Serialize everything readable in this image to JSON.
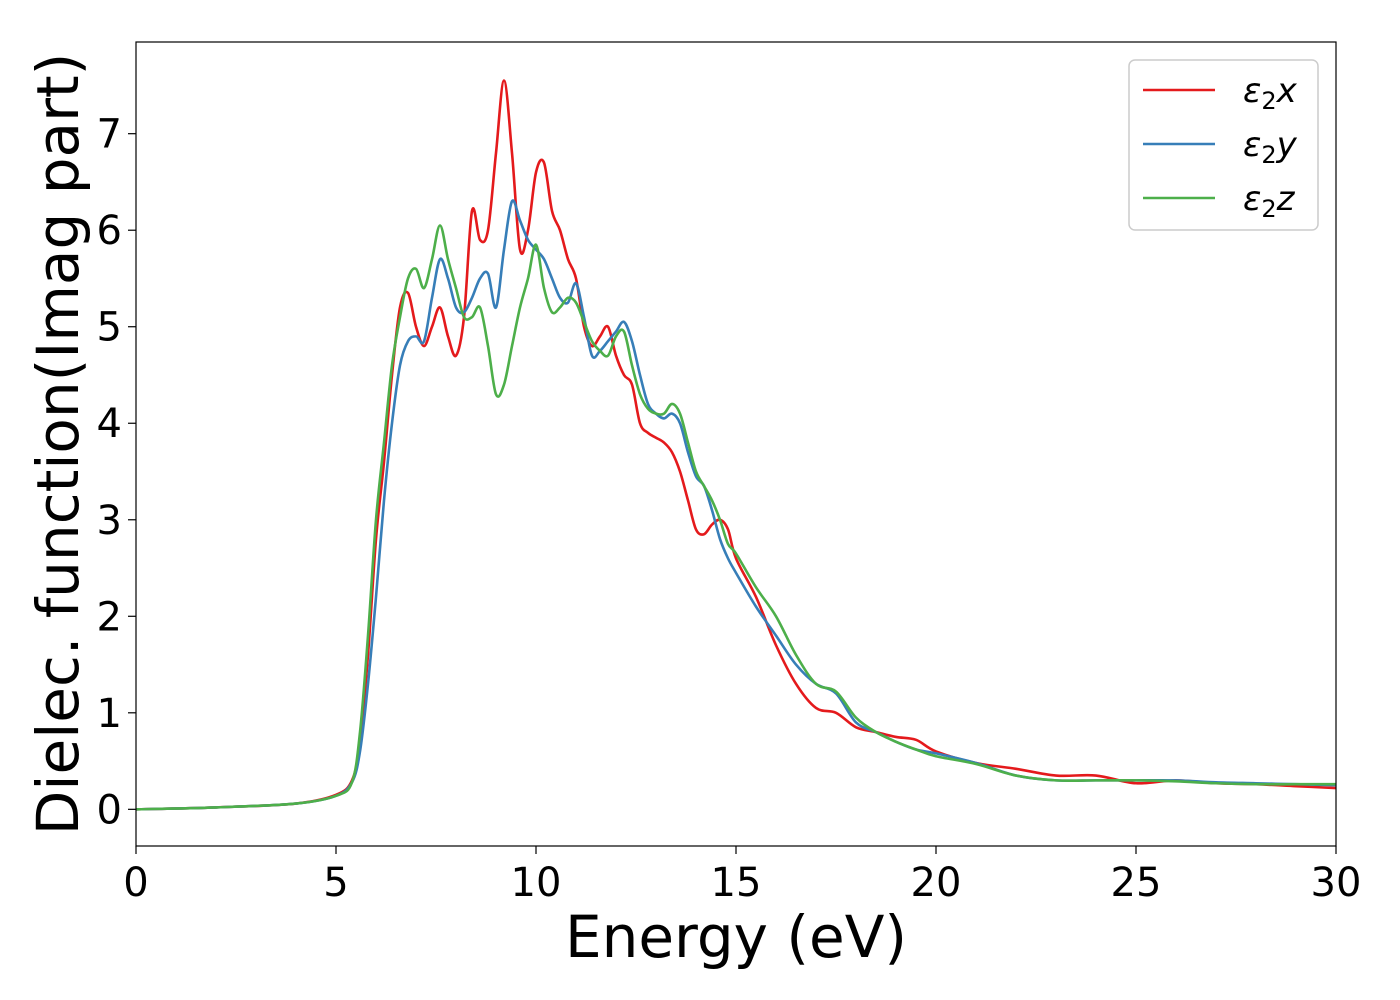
{
  "chart_data": {
    "type": "line",
    "title": "",
    "xlabel": "Energy (eV)",
    "ylabel": "Dielec. function(Imag part)",
    "xlim": [
      0,
      30
    ],
    "ylim": [
      -0.38,
      7.95
    ],
    "xticks": [
      0,
      5,
      10,
      15,
      20,
      25,
      30
    ],
    "xtick_labels": [
      "0",
      "5",
      "10",
      "15",
      "20",
      "25",
      "30"
    ],
    "yticks": [
      0,
      1,
      2,
      3,
      4,
      5,
      6,
      7
    ],
    "ytick_labels": [
      "0",
      "1",
      "2",
      "3",
      "4",
      "5",
      "6",
      "7"
    ],
    "grid": false,
    "legend_position": "top-right",
    "series": [
      {
        "name": "ε2x",
        "label_main": "ε",
        "label_sub": "2",
        "label_tail": "x",
        "color": "#e41a1c",
        "x": [
          0,
          2,
          4,
          5,
          5.4,
          5.6,
          5.8,
          6.0,
          6.2,
          6.4,
          6.6,
          6.8,
          7.0,
          7.2,
          7.4,
          7.6,
          7.8,
          8.0,
          8.2,
          8.4,
          8.6,
          8.8,
          9.0,
          9.2,
          9.4,
          9.6,
          9.8,
          10.0,
          10.2,
          10.4,
          10.6,
          10.8,
          11.0,
          11.2,
          11.4,
          11.6,
          11.8,
          12.0,
          12.2,
          12.4,
          12.6,
          12.8,
          13.0,
          13.2,
          13.4,
          13.6,
          13.8,
          14.0,
          14.2,
          14.4,
          14.6,
          14.8,
          15.0,
          15.5,
          16.0,
          16.5,
          17.0,
          17.5,
          18.0,
          18.5,
          19.0,
          19.5,
          20.0,
          21.0,
          22.0,
          23.0,
          24.0,
          25.0,
          26.0,
          27.0,
          28.0,
          29.0,
          30.0
        ],
        "y": [
          0.0,
          0.02,
          0.06,
          0.15,
          0.3,
          0.7,
          1.6,
          2.8,
          3.6,
          4.5,
          5.2,
          5.35,
          5.0,
          4.8,
          5.0,
          5.2,
          4.9,
          4.7,
          5.1,
          6.2,
          5.9,
          6.0,
          6.8,
          7.55,
          6.8,
          5.8,
          6.0,
          6.6,
          6.7,
          6.2,
          6.0,
          5.7,
          5.5,
          5.0,
          4.8,
          4.9,
          5.0,
          4.7,
          4.5,
          4.4,
          4.0,
          3.9,
          3.85,
          3.8,
          3.7,
          3.5,
          3.2,
          2.9,
          2.85,
          2.95,
          3.0,
          2.9,
          2.6,
          2.2,
          1.7,
          1.3,
          1.05,
          1.0,
          0.85,
          0.8,
          0.75,
          0.72,
          0.6,
          0.48,
          0.42,
          0.35,
          0.35,
          0.27,
          0.3,
          0.27,
          0.26,
          0.24,
          0.22
        ]
      },
      {
        "name": "ε2y",
        "label_main": "ε",
        "label_sub": "2",
        "label_tail": "y",
        "color": "#377eb8",
        "x": [
          0,
          2,
          4,
          5,
          5.4,
          5.6,
          5.8,
          6.0,
          6.2,
          6.4,
          6.6,
          6.8,
          7.0,
          7.2,
          7.4,
          7.6,
          7.8,
          8.0,
          8.2,
          8.4,
          8.6,
          8.8,
          9.0,
          9.2,
          9.4,
          9.6,
          9.8,
          10.0,
          10.2,
          10.4,
          10.6,
          10.8,
          11.0,
          11.2,
          11.4,
          11.6,
          11.8,
          12.0,
          12.2,
          12.4,
          12.6,
          12.8,
          13.0,
          13.2,
          13.4,
          13.6,
          13.8,
          14.0,
          14.2,
          14.4,
          14.6,
          14.8,
          15.0,
          15.5,
          16.0,
          16.5,
          17.0,
          17.5,
          18.0,
          18.5,
          19.0,
          19.5,
          20.0,
          21.0,
          22.0,
          23.0,
          24.0,
          25.0,
          26.0,
          27.0,
          28.0,
          29.0,
          30.0
        ],
        "y": [
          0.0,
          0.02,
          0.06,
          0.14,
          0.28,
          0.6,
          1.3,
          2.2,
          3.2,
          4.0,
          4.6,
          4.85,
          4.9,
          4.85,
          5.3,
          5.7,
          5.5,
          5.2,
          5.15,
          5.3,
          5.5,
          5.55,
          5.2,
          5.8,
          6.3,
          6.1,
          5.9,
          5.8,
          5.7,
          5.5,
          5.3,
          5.25,
          5.45,
          5.1,
          4.7,
          4.75,
          4.85,
          4.95,
          5.05,
          4.85,
          4.5,
          4.2,
          4.1,
          4.05,
          4.1,
          4.0,
          3.7,
          3.45,
          3.35,
          3.1,
          2.8,
          2.6,
          2.45,
          2.1,
          1.8,
          1.5,
          1.3,
          1.2,
          0.9,
          0.8,
          0.7,
          0.62,
          0.58,
          0.48,
          0.35,
          0.3,
          0.3,
          0.3,
          0.3,
          0.28,
          0.27,
          0.26,
          0.25
        ]
      },
      {
        "name": "ε2z",
        "label_main": "ε",
        "label_sub": "2",
        "label_tail": "z",
        "color": "#4daf4a",
        "x": [
          0,
          2,
          4,
          5,
          5.4,
          5.6,
          5.8,
          6.0,
          6.2,
          6.4,
          6.6,
          6.8,
          7.0,
          7.2,
          7.4,
          7.6,
          7.8,
          8.0,
          8.2,
          8.4,
          8.6,
          8.8,
          9.0,
          9.2,
          9.4,
          9.6,
          9.8,
          10.0,
          10.2,
          10.4,
          10.6,
          10.8,
          11.0,
          11.2,
          11.4,
          11.6,
          11.8,
          12.0,
          12.2,
          12.4,
          12.6,
          12.8,
          13.0,
          13.2,
          13.4,
          13.6,
          13.8,
          14.0,
          14.2,
          14.4,
          14.6,
          14.8,
          15.0,
          15.5,
          16.0,
          16.5,
          17.0,
          17.5,
          18.0,
          18.5,
          19.0,
          19.5,
          20.0,
          21.0,
          22.0,
          23.0,
          24.0,
          25.0,
          26.0,
          27.0,
          28.0,
          29.0,
          30.0
        ],
        "y": [
          0.0,
          0.02,
          0.06,
          0.14,
          0.28,
          0.8,
          1.8,
          3.0,
          3.8,
          4.6,
          5.1,
          5.5,
          5.6,
          5.4,
          5.7,
          6.05,
          5.7,
          5.4,
          5.1,
          5.1,
          5.2,
          4.8,
          4.3,
          4.4,
          4.8,
          5.2,
          5.5,
          5.85,
          5.4,
          5.15,
          5.2,
          5.3,
          5.25,
          5.05,
          4.85,
          4.75,
          4.7,
          4.9,
          4.95,
          4.6,
          4.3,
          4.15,
          4.1,
          4.1,
          4.2,
          4.1,
          3.8,
          3.5,
          3.35,
          3.2,
          3.0,
          2.75,
          2.65,
          2.3,
          2.0,
          1.6,
          1.3,
          1.22,
          0.95,
          0.8,
          0.7,
          0.62,
          0.55,
          0.47,
          0.35,
          0.3,
          0.3,
          0.3,
          0.29,
          0.27,
          0.26,
          0.26,
          0.26
        ]
      }
    ]
  }
}
